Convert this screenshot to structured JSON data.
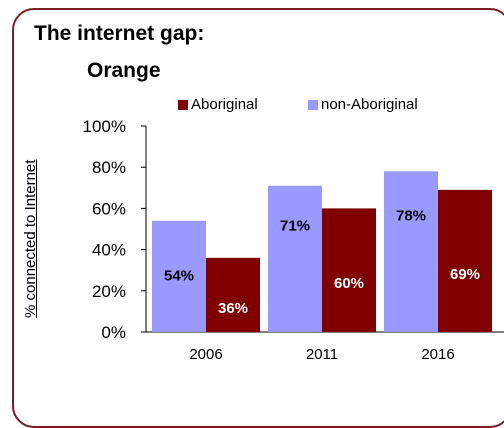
{
  "chart_data": {
    "type": "bar",
    "title_line1": "The internet gap:",
    "title_line2": "Orange",
    "categories": [
      "2006",
      "2011",
      "2016"
    ],
    "series": [
      {
        "name": "non-Aboriginal",
        "values": [
          54,
          71,
          78
        ],
        "labels": [
          "54%",
          "71%",
          "78%"
        ],
        "color": "#9999ff",
        "label_color": "#000000"
      },
      {
        "name": "Aboriginal",
        "values": [
          36,
          60,
          69
        ],
        "labels": [
          "36%",
          "60%",
          "69%"
        ],
        "color": "#800000",
        "label_color": "#ffffff"
      }
    ],
    "legend_order": [
      "Aboriginal",
      "non-Aboriginal"
    ],
    "ylabel": "% connected to Internet",
    "ylim": [
      0,
      100
    ],
    "yticks": [
      "0%",
      "20%",
      "40%",
      "60%",
      "80%",
      "100%"
    ],
    "grid": false,
    "legend_position": "top"
  },
  "colors": {
    "border": "#7a1f1f"
  }
}
